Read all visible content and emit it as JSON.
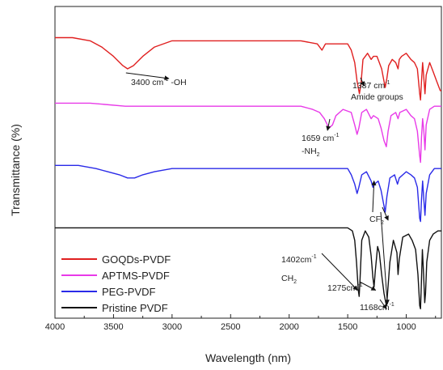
{
  "chart_data": {
    "type": "line",
    "title": "",
    "xlabel": "Wavelength (nm)",
    "ylabel": "Transmittance (%)",
    "xlim": [
      4000,
      700
    ],
    "x_reversed": true,
    "x_ticks": [
      4000,
      3500,
      3000,
      2500,
      2000,
      1500,
      1000
    ],
    "grid": false,
    "legend_position": "bottom-left",
    "series": [
      {
        "name": "GOQDs-PVDF",
        "color": "#e02020",
        "offset": 0.85,
        "points": [
          [
            4000,
            0.9
          ],
          [
            3850,
            0.9
          ],
          [
            3700,
            0.89
          ],
          [
            3600,
            0.87
          ],
          [
            3500,
            0.84
          ],
          [
            3420,
            0.81
          ],
          [
            3380,
            0.8
          ],
          [
            3330,
            0.81
          ],
          [
            3250,
            0.84
          ],
          [
            3150,
            0.87
          ],
          [
            3000,
            0.89
          ],
          [
            2800,
            0.89
          ],
          [
            2500,
            0.89
          ],
          [
            2200,
            0.89
          ],
          [
            1900,
            0.89
          ],
          [
            1760,
            0.88
          ],
          [
            1720,
            0.86
          ],
          [
            1690,
            0.88
          ],
          [
            1500,
            0.88
          ],
          [
            1470,
            0.86
          ],
          [
            1440,
            0.82
          ],
          [
            1420,
            0.76
          ],
          [
            1400,
            0.72
          ],
          [
            1387,
            0.75
          ],
          [
            1370,
            0.83
          ],
          [
            1330,
            0.85
          ],
          [
            1300,
            0.83
          ],
          [
            1280,
            0.84
          ],
          [
            1250,
            0.84
          ],
          [
            1230,
            0.82
          ],
          [
            1210,
            0.8
          ],
          [
            1195,
            0.77
          ],
          [
            1180,
            0.74
          ],
          [
            1165,
            0.77
          ],
          [
            1150,
            0.81
          ],
          [
            1120,
            0.83
          ],
          [
            1090,
            0.82
          ],
          [
            1070,
            0.8
          ],
          [
            1060,
            0.83
          ],
          [
            1040,
            0.84
          ],
          [
            1000,
            0.85
          ],
          [
            960,
            0.83
          ],
          [
            930,
            0.82
          ],
          [
            905,
            0.8
          ],
          [
            885,
            0.72
          ],
          [
            878,
            0.7
          ],
          [
            870,
            0.76
          ],
          [
            860,
            0.82
          ],
          [
            850,
            0.77
          ],
          [
            840,
            0.72
          ],
          [
            830,
            0.78
          ],
          [
            800,
            0.82
          ],
          [
            770,
            0.79
          ],
          [
            740,
            0.76
          ],
          [
            710,
            0.73
          ],
          [
            700,
            0.73
          ]
        ]
      },
      {
        "name": "APTMS-PVDF",
        "color": "#e83ae8",
        "offset": 0.68,
        "points": [
          [
            4000,
            0.69
          ],
          [
            3700,
            0.69
          ],
          [
            3400,
            0.68
          ],
          [
            3200,
            0.68
          ],
          [
            3000,
            0.68
          ],
          [
            2700,
            0.68
          ],
          [
            2400,
            0.68
          ],
          [
            2100,
            0.68
          ],
          [
            1900,
            0.68
          ],
          [
            1800,
            0.67
          ],
          [
            1740,
            0.66
          ],
          [
            1700,
            0.64
          ],
          [
            1660,
            0.61
          ],
          [
            1630,
            0.62
          ],
          [
            1600,
            0.65
          ],
          [
            1540,
            0.67
          ],
          [
            1470,
            0.66
          ],
          [
            1440,
            0.62
          ],
          [
            1420,
            0.59
          ],
          [
            1405,
            0.61
          ],
          [
            1380,
            0.66
          ],
          [
            1340,
            0.67
          ],
          [
            1300,
            0.64
          ],
          [
            1280,
            0.65
          ],
          [
            1240,
            0.64
          ],
          [
            1215,
            0.61
          ],
          [
            1190,
            0.57
          ],
          [
            1170,
            0.55
          ],
          [
            1155,
            0.6
          ],
          [
            1130,
            0.65
          ],
          [
            1090,
            0.66
          ],
          [
            1070,
            0.64
          ],
          [
            1055,
            0.66
          ],
          [
            1000,
            0.67
          ],
          [
            960,
            0.65
          ],
          [
            930,
            0.64
          ],
          [
            905,
            0.6
          ],
          [
            885,
            0.52
          ],
          [
            878,
            0.5
          ],
          [
            870,
            0.58
          ],
          [
            860,
            0.64
          ],
          [
            850,
            0.6
          ],
          [
            840,
            0.54
          ],
          [
            830,
            0.62
          ],
          [
            800,
            0.67
          ],
          [
            760,
            0.68
          ],
          [
            720,
            0.68
          ],
          [
            700,
            0.68
          ]
        ]
      },
      {
        "name": "PEG-PVDF",
        "color": "#2a2ae8",
        "offset": 0.48,
        "points": [
          [
            4000,
            0.49
          ],
          [
            3800,
            0.49
          ],
          [
            3650,
            0.48
          ],
          [
            3550,
            0.47
          ],
          [
            3450,
            0.46
          ],
          [
            3380,
            0.45
          ],
          [
            3320,
            0.45
          ],
          [
            3250,
            0.46
          ],
          [
            3150,
            0.47
          ],
          [
            3000,
            0.48
          ],
          [
            2800,
            0.48
          ],
          [
            2500,
            0.48
          ],
          [
            2200,
            0.48
          ],
          [
            1900,
            0.48
          ],
          [
            1750,
            0.48
          ],
          [
            1600,
            0.48
          ],
          [
            1500,
            0.48
          ],
          [
            1470,
            0.46
          ],
          [
            1440,
            0.43
          ],
          [
            1420,
            0.4
          ],
          [
            1405,
            0.42
          ],
          [
            1380,
            0.46
          ],
          [
            1340,
            0.47
          ],
          [
            1300,
            0.44
          ],
          [
            1285,
            0.42
          ],
          [
            1270,
            0.43
          ],
          [
            1240,
            0.44
          ],
          [
            1215,
            0.41
          ],
          [
            1195,
            0.37
          ],
          [
            1180,
            0.34
          ],
          [
            1165,
            0.39
          ],
          [
            1140,
            0.45
          ],
          [
            1100,
            0.46
          ],
          [
            1075,
            0.43
          ],
          [
            1060,
            0.45
          ],
          [
            1000,
            0.47
          ],
          [
            960,
            0.46
          ],
          [
            930,
            0.45
          ],
          [
            905,
            0.42
          ],
          [
            885,
            0.32
          ],
          [
            878,
            0.31
          ],
          [
            870,
            0.38
          ],
          [
            860,
            0.44
          ],
          [
            850,
            0.38
          ],
          [
            840,
            0.33
          ],
          [
            830,
            0.4
          ],
          [
            800,
            0.46
          ],
          [
            760,
            0.48
          ],
          [
            720,
            0.48
          ],
          [
            700,
            0.48
          ]
        ]
      },
      {
        "name": "Pristine PVDF",
        "color": "#111111",
        "offset": 0.28,
        "points": [
          [
            4000,
            0.29
          ],
          [
            3700,
            0.29
          ],
          [
            3400,
            0.29
          ],
          [
            3100,
            0.29
          ],
          [
            2800,
            0.29
          ],
          [
            2500,
            0.29
          ],
          [
            2200,
            0.29
          ],
          [
            1900,
            0.29
          ],
          [
            1700,
            0.29
          ],
          [
            1500,
            0.29
          ],
          [
            1460,
            0.28
          ],
          [
            1440,
            0.25
          ],
          [
            1425,
            0.18
          ],
          [
            1410,
            0.09
          ],
          [
            1402,
            0.07
          ],
          [
            1395,
            0.12
          ],
          [
            1380,
            0.25
          ],
          [
            1350,
            0.28
          ],
          [
            1320,
            0.26
          ],
          [
            1300,
            0.2
          ],
          [
            1285,
            0.13
          ],
          [
            1275,
            0.1
          ],
          [
            1265,
            0.15
          ],
          [
            1245,
            0.23
          ],
          [
            1230,
            0.21
          ],
          [
            1210,
            0.14
          ],
          [
            1190,
            0.08
          ],
          [
            1175,
            0.05
          ],
          [
            1168,
            0.04
          ],
          [
            1160,
            0.08
          ],
          [
            1140,
            0.18
          ],
          [
            1110,
            0.25
          ],
          [
            1080,
            0.21
          ],
          [
            1070,
            0.14
          ],
          [
            1060,
            0.19
          ],
          [
            1030,
            0.26
          ],
          [
            980,
            0.27
          ],
          [
            950,
            0.25
          ],
          [
            920,
            0.22
          ],
          [
            900,
            0.14
          ],
          [
            885,
            0.04
          ],
          [
            878,
            0.03
          ],
          [
            872,
            0.1
          ],
          [
            862,
            0.22
          ],
          [
            852,
            0.14
          ],
          [
            842,
            0.05
          ],
          [
            835,
            0.08
          ],
          [
            825,
            0.18
          ],
          [
            800,
            0.25
          ],
          [
            770,
            0.27
          ],
          [
            730,
            0.28
          ],
          [
            700,
            0.28
          ]
        ]
      }
    ],
    "annotations": [
      {
        "id": "oh",
        "parts": [
          [
            "3400 cm",
            ""
          ],
          [
            "-1",
            "sup"
          ],
          [
            " -OH",
            ""
          ]
        ]
      },
      {
        "id": "amide",
        "parts": [
          [
            "1387 cm",
            ""
          ],
          [
            "-1",
            "sup"
          ]
        ],
        "line2": "Amide groups"
      },
      {
        "id": "nh2",
        "parts": [
          [
            "1659 cm",
            ""
          ],
          [
            "-1",
            "sup"
          ]
        ],
        "line2_parts": [
          [
            "-NH",
            ""
          ],
          [
            "2",
            "sub"
          ]
        ]
      },
      {
        "id": "cf2",
        "parts": [
          [
            "CF",
            ""
          ],
          [
            "2",
            "sub"
          ]
        ]
      },
      {
        "id": "p1402",
        "parts": [
          [
            "1402cm",
            ""
          ],
          [
            "-1",
            "sup"
          ]
        ],
        "line2_parts": [
          [
            "CH",
            ""
          ],
          [
            "2",
            "sub"
          ]
        ]
      },
      {
        "id": "p1275",
        "parts": [
          [
            "1275cm",
            ""
          ],
          [
            "-1",
            "sup"
          ]
        ]
      },
      {
        "id": "p1168",
        "parts": [
          [
            "1168cm",
            ""
          ],
          [
            "-1",
            "sup"
          ]
        ]
      }
    ]
  }
}
